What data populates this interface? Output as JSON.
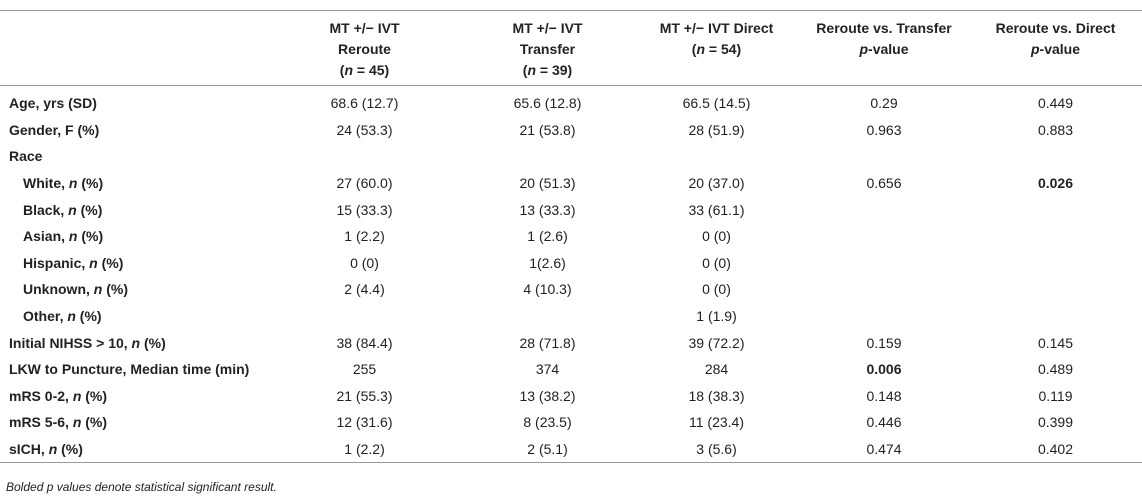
{
  "table": {
    "columns": [
      {
        "lines": [
          "MT +/− IVT",
          "Reroute",
          "(n = 45)"
        ]
      },
      {
        "lines": [
          "MT +/− IVT",
          "Transfer",
          "(n = 39)"
        ]
      },
      {
        "lines": [
          "MT +/− IVT Direct",
          "(n = 54)"
        ]
      },
      {
        "lines": [
          "Reroute vs. Transfer",
          "p-value"
        ]
      },
      {
        "lines": [
          "Reroute vs. Direct",
          "p-value"
        ]
      }
    ],
    "rows": [
      {
        "label": "Age, yrs (SD)",
        "values": [
          "68.6 (12.7)",
          "65.6 (12.8)",
          "66.5 (14.5)",
          "0.29",
          "0.449"
        ]
      },
      {
        "label": "Gender, F (%)",
        "values": [
          "24 (53.3)",
          "21 (53.8)",
          "28 (51.9)",
          "0.963",
          "0.883"
        ]
      },
      {
        "label": "Race",
        "values": [
          "",
          "",
          "",
          "",
          ""
        ]
      },
      {
        "label": "White, n (%)",
        "values": [
          "27 (60.0)",
          "20 (51.3)",
          "20 (37.0)",
          "0.656",
          "0.026"
        ]
      },
      {
        "label": "Black, n (%)",
        "values": [
          "15 (33.3)",
          "13 (33.3)",
          "33 (61.1)",
          "",
          ""
        ]
      },
      {
        "label": "Asian, n (%)",
        "values": [
          "1 (2.2)",
          "1 (2.6)",
          "0 (0)",
          "",
          ""
        ]
      },
      {
        "label": "Hispanic, n (%)",
        "values": [
          "0 (0)",
          "1(2.6)",
          "0 (0)",
          "",
          ""
        ]
      },
      {
        "label": "Unknown, n (%)",
        "values": [
          "2 (4.4)",
          "4 (10.3)",
          "0 (0)",
          "",
          ""
        ]
      },
      {
        "label": "Other, n (%)",
        "values": [
          "",
          "",
          "1 (1.9)",
          "",
          ""
        ]
      },
      {
        "label": "Initial NIHSS > 10, n (%)",
        "values": [
          "38 (84.4)",
          "28 (71.8)",
          "39 (72.2)",
          "0.159",
          "0.145"
        ]
      },
      {
        "label": "LKW to Puncture, Median time (min)",
        "values": [
          "255",
          "374",
          "284",
          "0.006",
          "0.489"
        ]
      },
      {
        "label": "mRS 0-2, n (%)",
        "values": [
          "21 (55.3)",
          "13 (38.2)",
          "18 (38.3)",
          "0.148",
          "0.119"
        ]
      },
      {
        "label": "mRS 5-6, n (%)",
        "values": [
          "12 (31.6)",
          "8 (23.5)",
          "11 (23.4)",
          "0.446",
          "0.399"
        ]
      },
      {
        "label": "sICH, n (%)",
        "values": [
          "1 (2.2)",
          "2 (5.1)",
          "3 (5.6)",
          "0.474",
          "0.402"
        ]
      }
    ]
  },
  "footnote": "Bolded p values denote statistical significant result."
}
